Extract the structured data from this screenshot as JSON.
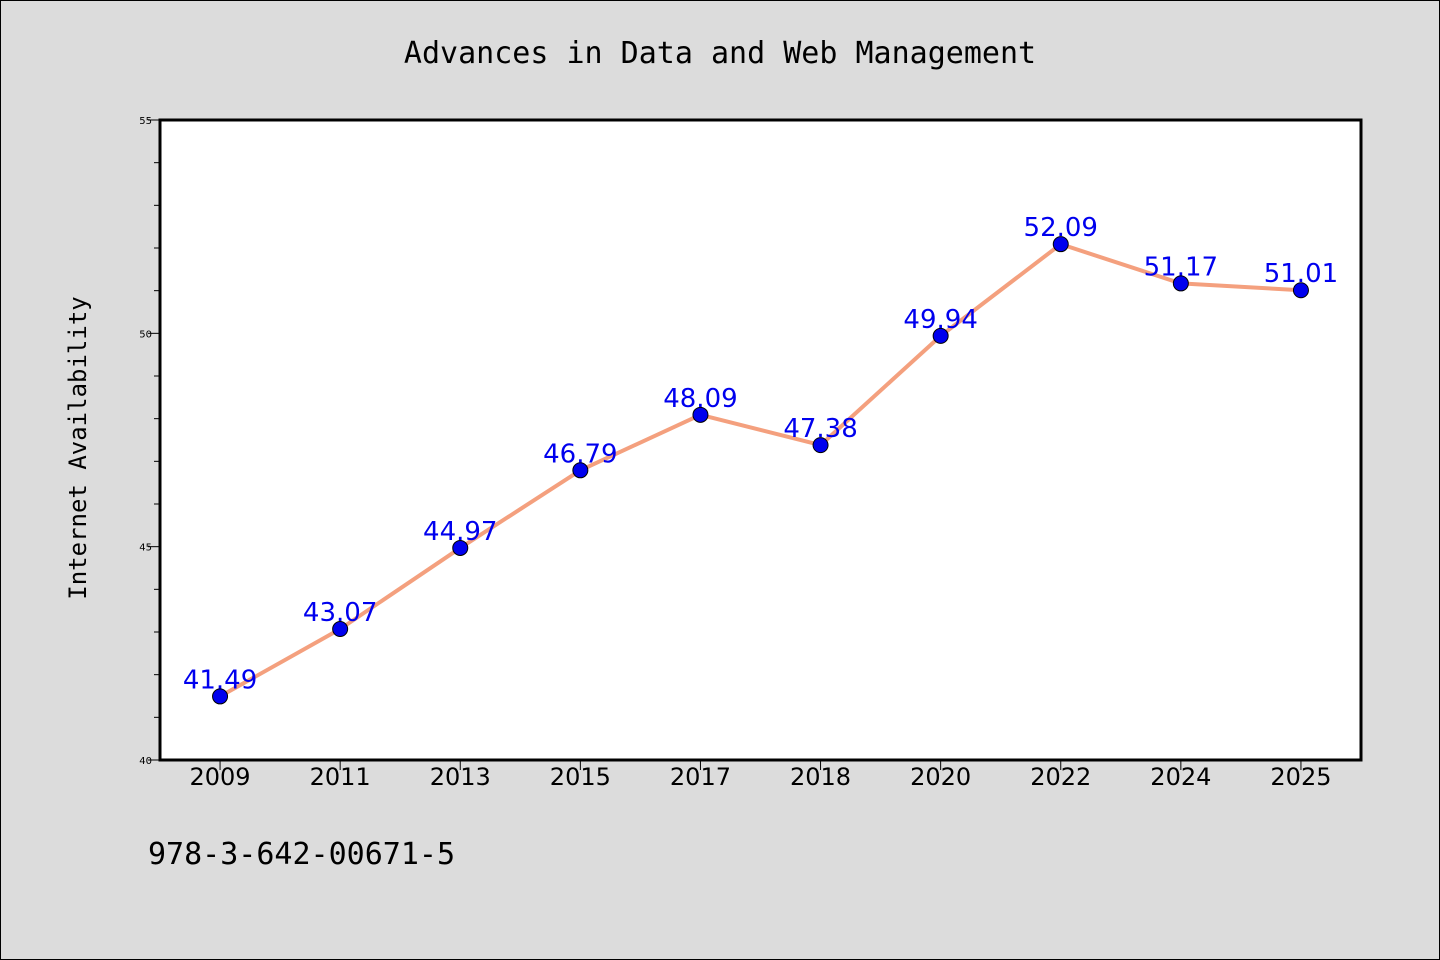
{
  "chart_data": {
    "type": "line",
    "title": "Advances in Data and Web Management",
    "xlabel": "",
    "ylabel": "Internet Availability",
    "categories": [
      "2009",
      "2011",
      "2013",
      "2015",
      "2017",
      "2018",
      "2020",
      "2022",
      "2024",
      "2025"
    ],
    "series": [
      {
        "values": [
          41.49,
          43.07,
          44.97,
          46.79,
          48.09,
          47.38,
          49.94,
          52.09,
          51.17,
          51.01
        ],
        "labels": [
          "41.49",
          "43.07",
          "44.97",
          "46.79",
          "48.09",
          "47.38",
          "49.94",
          "52.09",
          "51.17",
          "51.01"
        ],
        "line_color": "#f4a07e",
        "marker_color": "#0000ee",
        "label_color": "#0000ee"
      }
    ],
    "ylim": [
      40,
      55
    ],
    "yticks": [
      "40",
      "45",
      "50",
      "55"
    ],
    "grid": false,
    "legend": "none"
  },
  "footer": {
    "text": "978-3-642-00671-5"
  }
}
